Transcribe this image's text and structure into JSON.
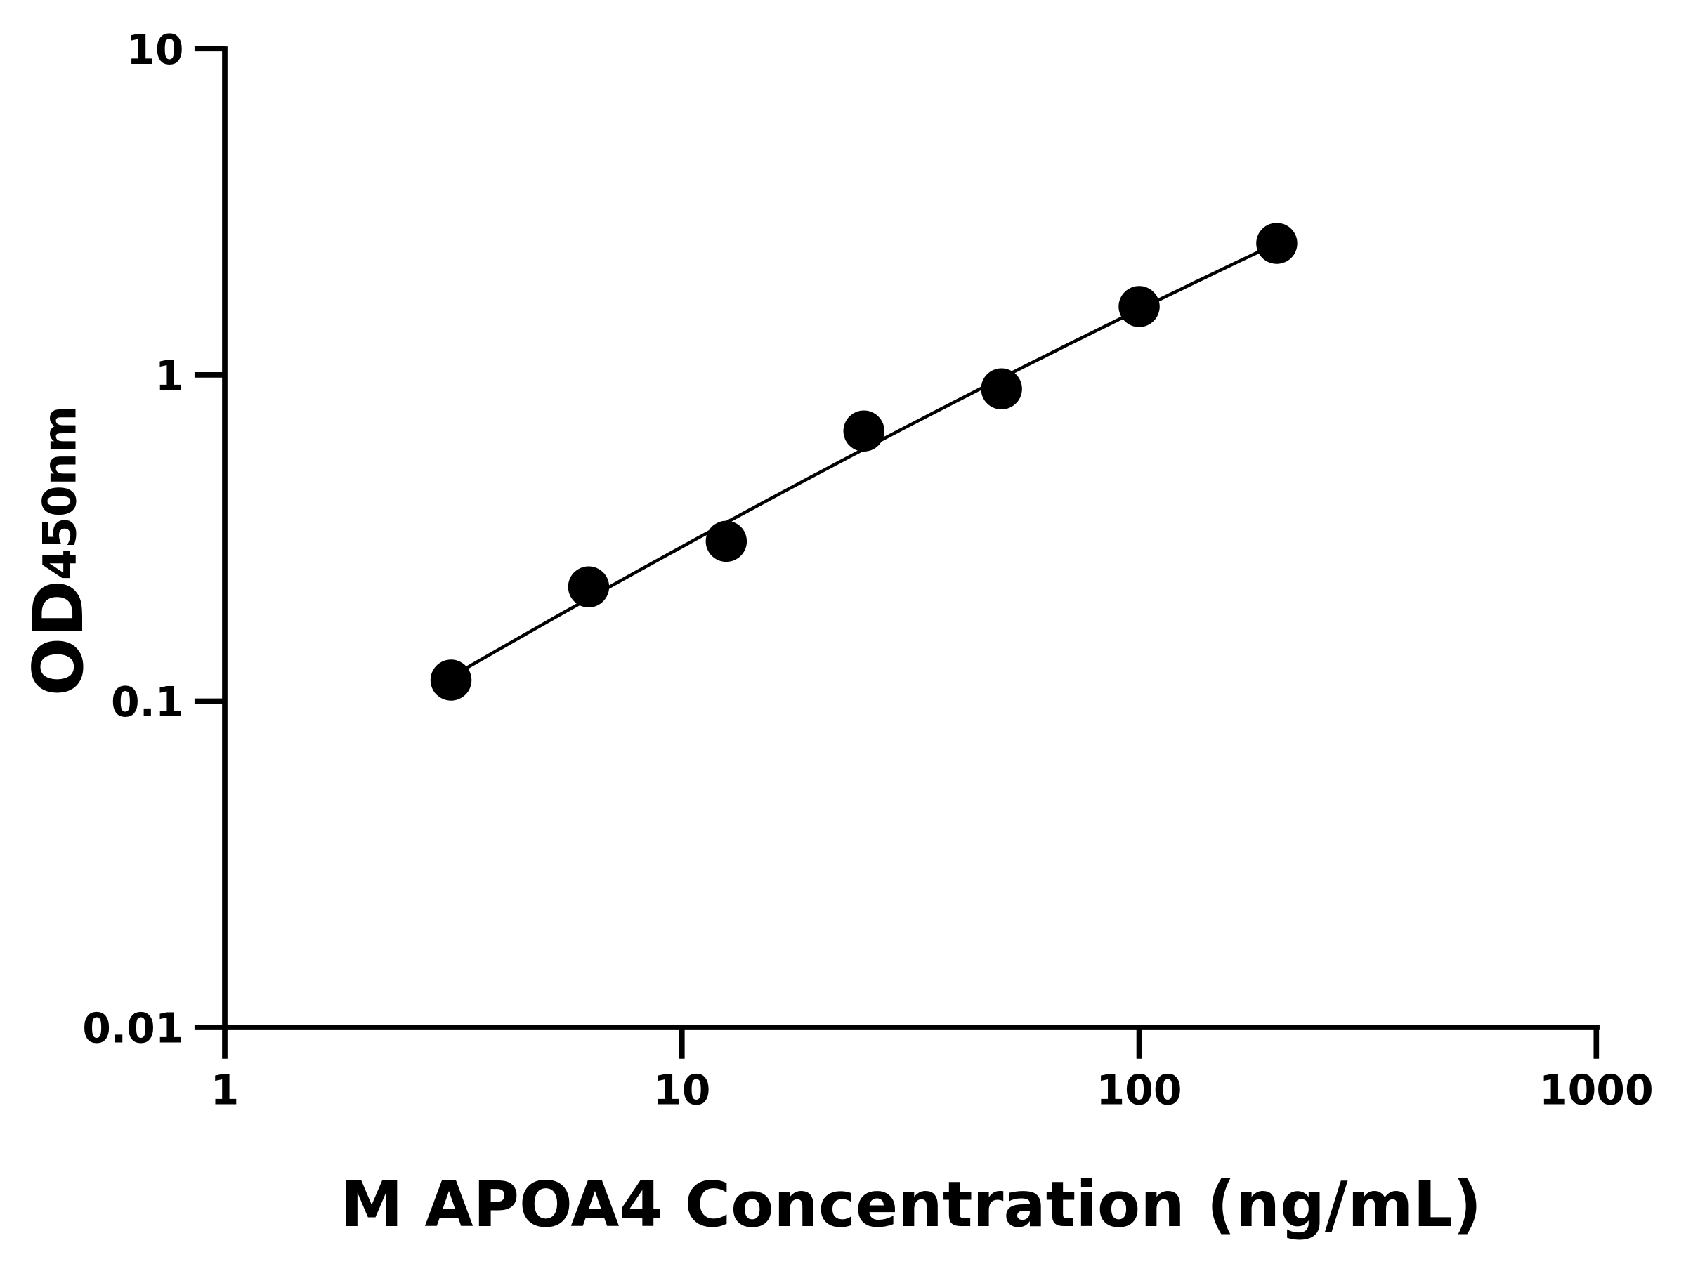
{
  "chart_data": {
    "type": "scatter",
    "title": "",
    "xlabel": "M APOA4 Concentration (ng/mL)",
    "ylabel": "OD",
    "ylabel_subscript": "450nm",
    "x_scale": "log",
    "y_scale": "log",
    "xlim": [
      1,
      1000
    ],
    "ylim": [
      0.01,
      10
    ],
    "x_ticks": [
      "1",
      "10",
      "100",
      "1000"
    ],
    "y_ticks": [
      "0.01",
      "0.1",
      "1",
      "10"
    ],
    "grid": false,
    "fit_line": true,
    "series": [
      {
        "x": [
          3.125,
          6.25,
          12.5,
          25,
          50,
          100,
          200
        ],
        "y": [
          0.116,
          0.224,
          0.309,
          0.673,
          0.906,
          1.62,
          2.53
        ]
      }
    ],
    "colors": {
      "points": "#000000",
      "line": "#000000"
    }
  }
}
